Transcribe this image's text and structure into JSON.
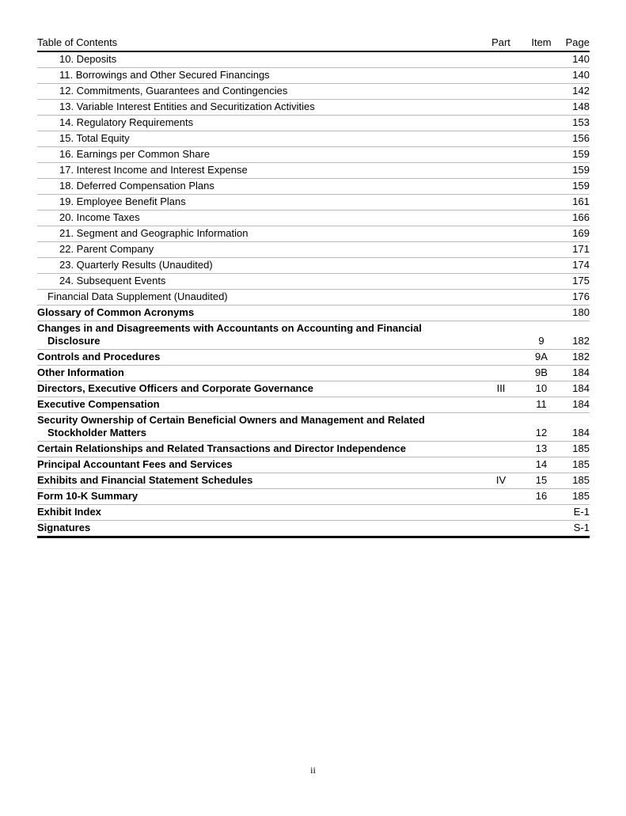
{
  "colors": {
    "rule_gray": "#b9b9b9",
    "rule_black": "#000000",
    "text": "#000000",
    "paper": "#ffffff"
  },
  "footer": {
    "page_number": "ii"
  },
  "toc": {
    "header": {
      "title": "Table of Contents",
      "part": "Part",
      "item": "Item",
      "page": "Page"
    },
    "rows": [
      {
        "lines": [
          "10. Deposits"
        ],
        "part": "",
        "item": "",
        "page": "140",
        "bold": false,
        "indent": 2
      },
      {
        "lines": [
          "11. Borrowings and Other Secured Financings"
        ],
        "part": "",
        "item": "",
        "page": "140",
        "bold": false,
        "indent": 2
      },
      {
        "lines": [
          "12. Commitments, Guarantees and Contingencies"
        ],
        "part": "",
        "item": "",
        "page": "142",
        "bold": false,
        "indent": 2
      },
      {
        "lines": [
          "13. Variable Interest Entities and Securitization Activities"
        ],
        "part": "",
        "item": "",
        "page": "148",
        "bold": false,
        "indent": 2
      },
      {
        "lines": [
          "14. Regulatory Requirements"
        ],
        "part": "",
        "item": "",
        "page": "153",
        "bold": false,
        "indent": 2
      },
      {
        "lines": [
          "15. Total Equity"
        ],
        "part": "",
        "item": "",
        "page": "156",
        "bold": false,
        "indent": 2
      },
      {
        "lines": [
          "16. Earnings per Common Share"
        ],
        "part": "",
        "item": "",
        "page": "159",
        "bold": false,
        "indent": 2
      },
      {
        "lines": [
          "17. Interest Income and Interest Expense"
        ],
        "part": "",
        "item": "",
        "page": "159",
        "bold": false,
        "indent": 2
      },
      {
        "lines": [
          "18. Deferred Compensation Plans"
        ],
        "part": "",
        "item": "",
        "page": "159",
        "bold": false,
        "indent": 2
      },
      {
        "lines": [
          "19. Employee Benefit Plans"
        ],
        "part": "",
        "item": "",
        "page": "161",
        "bold": false,
        "indent": 2
      },
      {
        "lines": [
          "20. Income Taxes"
        ],
        "part": "",
        "item": "",
        "page": "166",
        "bold": false,
        "indent": 2
      },
      {
        "lines": [
          "21. Segment and Geographic Information"
        ],
        "part": "",
        "item": "",
        "page": "169",
        "bold": false,
        "indent": 2
      },
      {
        "lines": [
          "22. Parent Company"
        ],
        "part": "",
        "item": "",
        "page": "171",
        "bold": false,
        "indent": 2
      },
      {
        "lines": [
          "23. Quarterly Results (Unaudited)"
        ],
        "part": "",
        "item": "",
        "page": "174",
        "bold": false,
        "indent": 2
      },
      {
        "lines": [
          "24. Subsequent Events"
        ],
        "part": "",
        "item": "",
        "page": "175",
        "bold": false,
        "indent": 2
      },
      {
        "lines": [
          "Financial Data Supplement (Unaudited)"
        ],
        "part": "",
        "item": "",
        "page": "176",
        "bold": false,
        "indent": 1
      },
      {
        "lines": [
          "Glossary of Common Acronyms"
        ],
        "part": "",
        "item": "",
        "page": "180",
        "bold": true,
        "indent": 0
      },
      {
        "lines": [
          "Changes in and Disagreements with Accountants on Accounting and Financial",
          "Disclosure"
        ],
        "part": "",
        "item": "9",
        "page": "182",
        "bold": true,
        "indent": 0
      },
      {
        "lines": [
          "Controls and Procedures"
        ],
        "part": "",
        "item": "9A",
        "page": "182",
        "bold": true,
        "indent": 0
      },
      {
        "lines": [
          "Other Information"
        ],
        "part": "",
        "item": "9B",
        "page": "184",
        "bold": true,
        "indent": 0
      },
      {
        "lines": [
          "Directors, Executive Officers and Corporate Governance"
        ],
        "part": "III",
        "item": "10",
        "page": "184",
        "bold": true,
        "indent": 0
      },
      {
        "lines": [
          "Executive Compensation"
        ],
        "part": "",
        "item": "11",
        "page": "184",
        "bold": true,
        "indent": 0
      },
      {
        "lines": [
          "Security Ownership of Certain Beneficial Owners and Management and Related",
          "Stockholder Matters"
        ],
        "part": "",
        "item": "12",
        "page": "184",
        "bold": true,
        "indent": 0
      },
      {
        "lines": [
          "Certain Relationships and Related Transactions and Director Independence"
        ],
        "part": "",
        "item": "13",
        "page": "185",
        "bold": true,
        "indent": 0
      },
      {
        "lines": [
          "Principal Accountant Fees and Services"
        ],
        "part": "",
        "item": "14",
        "page": "185",
        "bold": true,
        "indent": 0
      },
      {
        "lines": [
          "Exhibits and Financial Statement Schedules"
        ],
        "part": "IV",
        "item": "15",
        "page": "185",
        "bold": true,
        "indent": 0
      },
      {
        "lines": [
          "Form 10-K Summary"
        ],
        "part": "",
        "item": "16",
        "page": "185",
        "bold": true,
        "indent": 0
      },
      {
        "lines": [
          "Exhibit Index"
        ],
        "part": "",
        "item": "",
        "page": "E-1",
        "bold": true,
        "indent": 0
      },
      {
        "lines": [
          "Signatures"
        ],
        "part": "",
        "item": "",
        "page": "S-1",
        "bold": true,
        "indent": 0
      }
    ]
  }
}
